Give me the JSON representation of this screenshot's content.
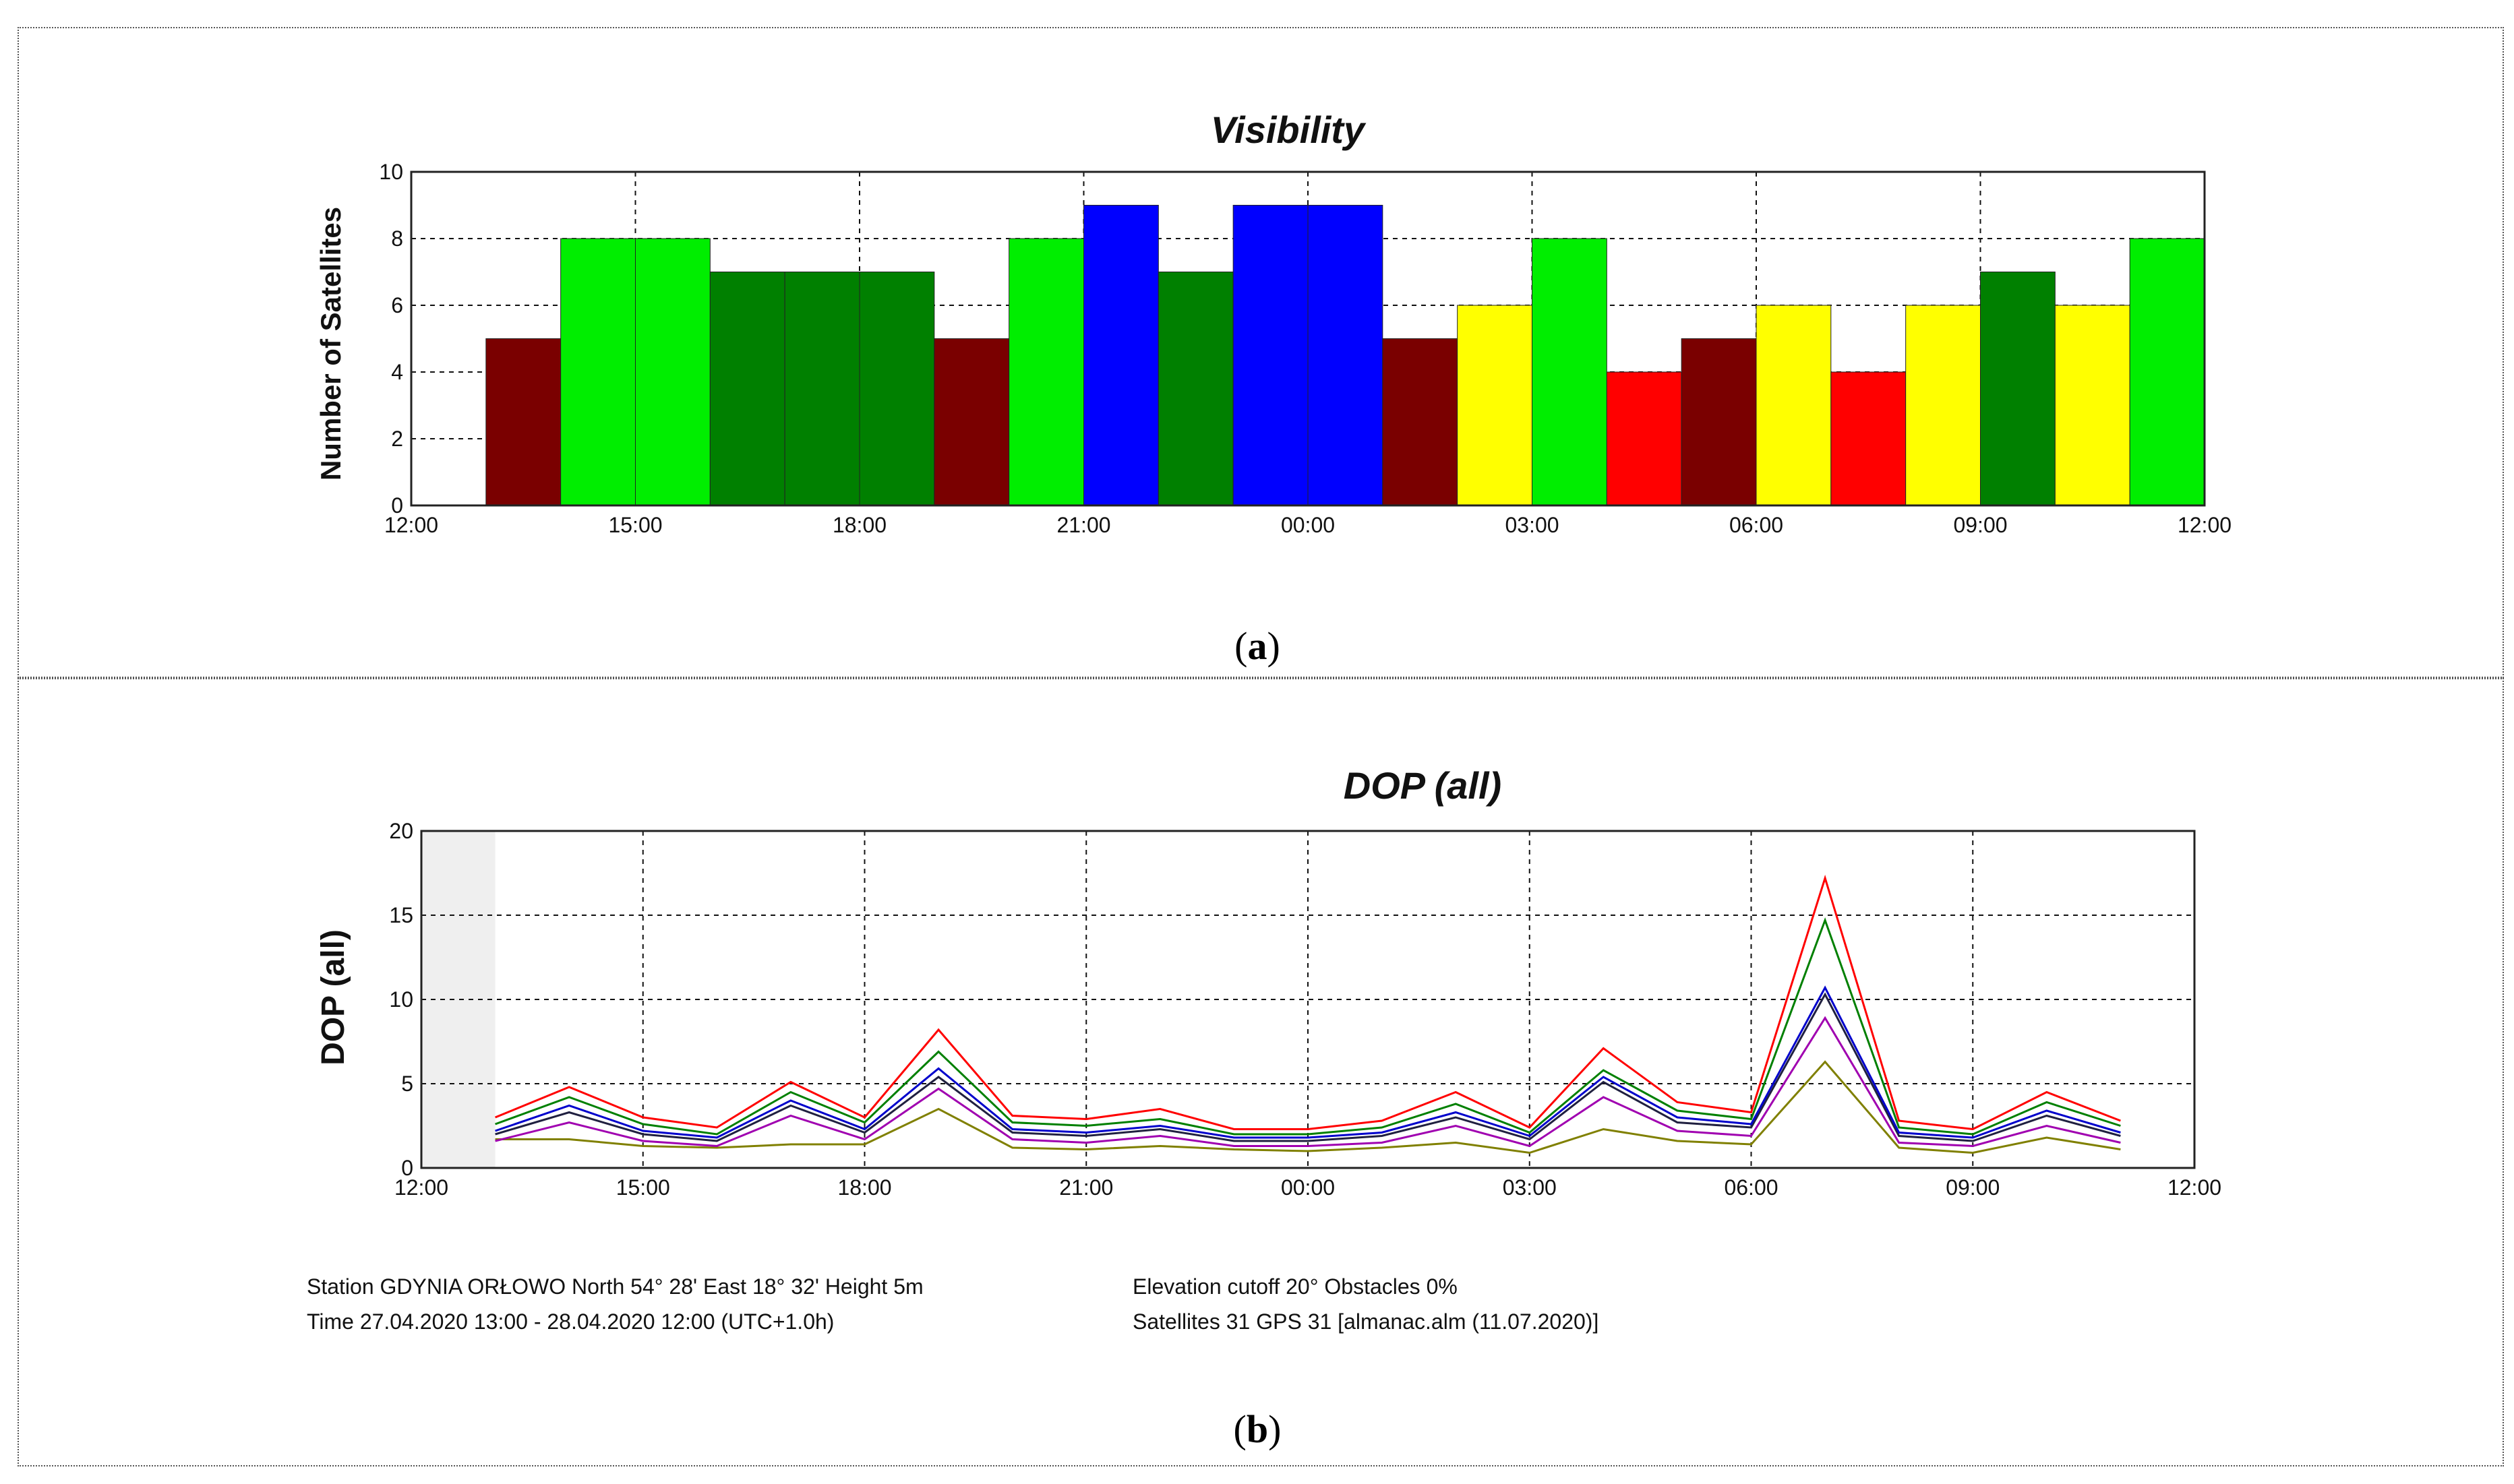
{
  "chart_data": [
    {
      "type": "bar",
      "title": "Visibility",
      "ylabel": "Number of Satellites",
      "xlabel": "",
      "ylim": [
        0,
        10
      ],
      "yticks": [
        0,
        2,
        4,
        6,
        8,
        10
      ],
      "xlim": [
        0,
        24
      ],
      "xticks": [
        "12:00",
        "15:00",
        "18:00",
        "21:00",
        "00:00",
        "03:00",
        "06:00",
        "09:00",
        "12:00"
      ],
      "grid": true,
      "color_scale": {
        "4": "#ff0000",
        "5": "#7a0000",
        "6": "#ffff00",
        "7": "#008000",
        "8": "#00ee00",
        "9": "#0000ff"
      },
      "hours_from_start": [
        1,
        2,
        3,
        4,
        5,
        6,
        7,
        8,
        9,
        10,
        11,
        12,
        13,
        14,
        15,
        16,
        17,
        18,
        19,
        20,
        21,
        22,
        23
      ],
      "values": [
        5,
        8,
        8,
        7,
        7,
        7,
        5,
        8,
        9,
        7,
        9,
        9,
        5,
        6,
        8,
        4,
        5,
        6,
        4,
        6,
        7,
        6,
        8
      ]
    },
    {
      "type": "line",
      "title": "DOP (all)",
      "ylabel": "DOP (all)",
      "xlabel": "",
      "ylim": [
        0,
        20
      ],
      "yticks": [
        0,
        5,
        10,
        15,
        20
      ],
      "xlim": [
        0,
        24
      ],
      "xticks": [
        "12:00",
        "15:00",
        "18:00",
        "21:00",
        "00:00",
        "03:00",
        "06:00",
        "09:00",
        "12:00"
      ],
      "grid": true,
      "shaded_range_hours": [
        0,
        1
      ],
      "x_hours_from_start": [
        1,
        2,
        3,
        4,
        5,
        6,
        7,
        8,
        9,
        10,
        11,
        12,
        13,
        14,
        15,
        16,
        17,
        18,
        19,
        20,
        21,
        22,
        23
      ],
      "series": [
        {
          "name": "red",
          "color": "#ff0000",
          "values": [
            3.0,
            4.8,
            3.0,
            2.4,
            5.1,
            3.0,
            8.2,
            3.1,
            2.9,
            3.5,
            2.3,
            2.3,
            2.8,
            4.5,
            2.4,
            7.1,
            3.9,
            3.3,
            17.2,
            2.8,
            2.3,
            4.5,
            2.8
          ]
        },
        {
          "name": "green",
          "color": "#008000",
          "values": [
            2.6,
            4.2,
            2.6,
            2.0,
            4.5,
            2.7,
            6.9,
            2.7,
            2.5,
            2.9,
            2.0,
            2.0,
            2.4,
            3.8,
            2.1,
            5.8,
            3.4,
            2.9,
            14.7,
            2.4,
            2.0,
            3.9,
            2.5
          ]
        },
        {
          "name": "blue",
          "color": "#0000cc",
          "values": [
            2.2,
            3.7,
            2.2,
            1.8,
            4.0,
            2.3,
            5.9,
            2.3,
            2.1,
            2.5,
            1.8,
            1.8,
            2.1,
            3.3,
            1.9,
            5.4,
            3.0,
            2.6,
            10.7,
            2.1,
            1.8,
            3.4,
            2.1
          ]
        },
        {
          "name": "navy",
          "color": "#202040",
          "values": [
            2.0,
            3.3,
            2.0,
            1.6,
            3.7,
            2.1,
            5.4,
            2.1,
            1.9,
            2.3,
            1.6,
            1.6,
            1.9,
            3.0,
            1.7,
            5.1,
            2.7,
            2.4,
            10.3,
            1.9,
            1.6,
            3.1,
            1.9
          ]
        },
        {
          "name": "purple",
          "color": "#a000b0",
          "values": [
            1.6,
            2.7,
            1.6,
            1.3,
            3.1,
            1.7,
            4.7,
            1.7,
            1.5,
            1.9,
            1.3,
            1.3,
            1.5,
            2.5,
            1.3,
            4.2,
            2.2,
            1.9,
            8.9,
            1.5,
            1.3,
            2.5,
            1.5
          ]
        },
        {
          "name": "olive",
          "color": "#808000",
          "values": [
            1.7,
            1.7,
            1.3,
            1.2,
            1.4,
            1.4,
            3.5,
            1.2,
            1.1,
            1.3,
            1.1,
            1.0,
            1.2,
            1.5,
            0.9,
            2.3,
            1.6,
            1.4,
            6.3,
            1.2,
            0.9,
            1.8,
            1.1
          ]
        }
      ]
    }
  ],
  "captions": {
    "a_open": "(",
    "a_letter": "a",
    "a_close": ")",
    "b_open": "(",
    "b_letter": "b",
    "b_close": ")"
  },
  "footer": {
    "left_line1": "Station GDYNIA ORŁOWO   North 54° 28'    East 18° 32'    Height 5m",
    "left_line2": "Time 27.04.2020 13:00 -  28.04.2020 12:00 (UTC+1.0h)",
    "right_line1": "Elevation cutoff 20°   Obstacles 0%",
    "right_line2": "Satellites 31   GPS 31   [almanac.alm (11.07.2020)]"
  }
}
